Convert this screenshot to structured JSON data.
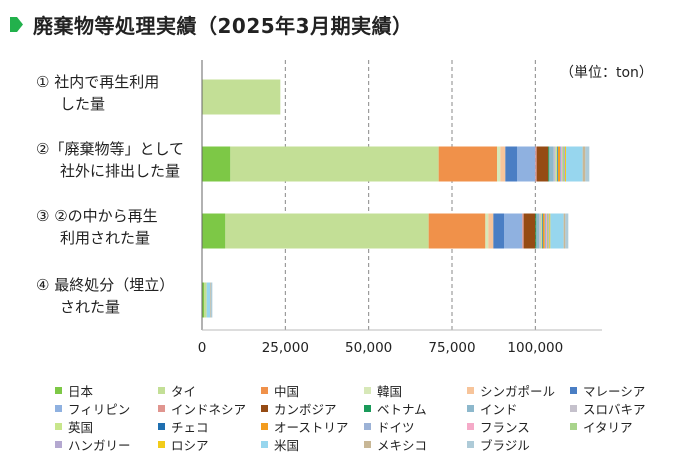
{
  "title": "廃棄物等処理実績（2025年3月期実績）",
  "unit_label": "（単位：ton）",
  "colors": {
    "title_marker": "#22b14c"
  },
  "chart_data": {
    "type": "bar",
    "orientation": "horizontal",
    "stacked": true,
    "xlim": [
      0,
      120000
    ],
    "x_ticks": [
      0,
      25000,
      50000,
      75000,
      100000
    ],
    "x_tick_labels": [
      "0",
      "25,000",
      "50,000",
      "75,000",
      "100,000"
    ],
    "grid": "vertical dashed",
    "legend_position": "bottom",
    "categories": [
      {
        "label_lines": [
          "①  社内で再生利用",
          "した量"
        ]
      },
      {
        "label_lines": [
          "②「廃棄物等」として",
          "社外に排出した量"
        ]
      },
      {
        "label_lines": [
          "③  ②の中から再生",
          "利用された量"
        ]
      },
      {
        "label_lines": [
          "④  最終処分（埋立）",
          "された量"
        ]
      }
    ],
    "series": [
      {
        "name": "日本",
        "color": "#7dc846",
        "values": [
          0,
          8500,
          7000,
          600
        ]
      },
      {
        "name": "タイ",
        "color": "#c3df96",
        "values": [
          23500,
          62500,
          61000,
          800
        ]
      },
      {
        "name": "中国",
        "color": "#f0914a",
        "values": [
          0,
          17500,
          17000,
          0
        ]
      },
      {
        "name": "韓国",
        "color": "#d7e8b8",
        "values": [
          0,
          1000,
          900,
          0
        ]
      },
      {
        "name": "シンガポール",
        "color": "#f7c49a",
        "values": [
          0,
          1500,
          1500,
          0
        ]
      },
      {
        "name": "マレーシア",
        "color": "#4a7ec4",
        "values": [
          0,
          3500,
          3200,
          0
        ]
      },
      {
        "name": "フィリピン",
        "color": "#8fb1e0",
        "values": [
          0,
          5500,
          5500,
          0
        ]
      },
      {
        "name": "インドネシア",
        "color": "#e0958f",
        "values": [
          0,
          400,
          400,
          0
        ]
      },
      {
        "name": "カンボジア",
        "color": "#954b14",
        "values": [
          0,
          3500,
          3500,
          0
        ]
      },
      {
        "name": "ベトナム",
        "color": "#1a9a5a",
        "values": [
          0,
          300,
          300,
          0
        ]
      },
      {
        "name": "インド",
        "color": "#8db8cc",
        "values": [
          0,
          1300,
          900,
          0
        ]
      },
      {
        "name": "スロバキア",
        "color": "#c5c1cc",
        "values": [
          0,
          600,
          500,
          0
        ]
      },
      {
        "name": "英国",
        "color": "#c8e68c",
        "values": [
          0,
          500,
          400,
          0
        ]
      },
      {
        "name": "チェコ",
        "color": "#1f6fb0",
        "values": [
          0,
          200,
          200,
          0
        ]
      },
      {
        "name": "オーストリア",
        "color": "#f39c1f",
        "values": [
          0,
          600,
          500,
          0
        ]
      },
      {
        "name": "ドイツ",
        "color": "#9cb2d6",
        "values": [
          0,
          400,
          400,
          0
        ]
      },
      {
        "name": "フランス",
        "color": "#f5aac8",
        "values": [
          0,
          300,
          300,
          0
        ]
      },
      {
        "name": "イタリア",
        "color": "#a9d48c",
        "values": [
          0,
          500,
          400,
          0
        ]
      },
      {
        "name": "ハンガリー",
        "color": "#b4a8d0",
        "values": [
          0,
          300,
          300,
          0
        ]
      },
      {
        "name": "ロシア",
        "color": "#f2cc1a",
        "values": [
          0,
          300,
          300,
          0
        ]
      },
      {
        "name": "米国",
        "color": "#97d6ee",
        "values": [
          0,
          5000,
          4000,
          1000
        ]
      },
      {
        "name": "メキシコ",
        "color": "#c8b796",
        "values": [
          0,
          800,
          500,
          200
        ]
      },
      {
        "name": "ブラジル",
        "color": "#aecbd8",
        "values": [
          0,
          1200,
          900,
          500
        ]
      }
    ]
  }
}
